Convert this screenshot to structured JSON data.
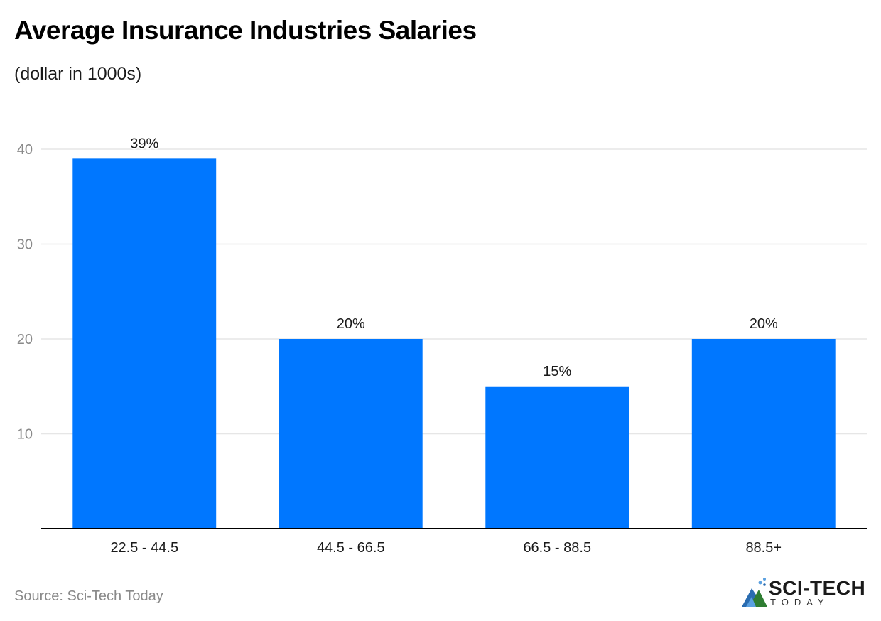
{
  "header": {
    "title": "Average Insurance Industries Salaries",
    "subtitle": "(dollar in 1000s)"
  },
  "footer": {
    "source": "Source: Sci-Tech Today",
    "logo_main": "SCI-TECH",
    "logo_sub": "TODAY"
  },
  "colors": {
    "bar": "#0077FF",
    "grid": "#e6e6e6",
    "axis": "#000000",
    "tick_label": "#8a8a8a",
    "data_label": "#1a1a1a"
  },
  "chart_data": {
    "type": "bar",
    "title": "Average Insurance Industries Salaries",
    "subtitle": "(dollar in 1000s)",
    "xlabel": "",
    "ylabel": "",
    "categories": [
      "22.5 - 44.5",
      "44.5 - 66.5",
      "66.5 - 88.5",
      "88.5+"
    ],
    "values": [
      39,
      20,
      15,
      20
    ],
    "data_labels": [
      "39%",
      "20%",
      "15%",
      "20%"
    ],
    "ylim": [
      0,
      40
    ],
    "yticks": [
      10,
      20,
      30,
      40
    ],
    "grid": true,
    "legend": "none"
  }
}
